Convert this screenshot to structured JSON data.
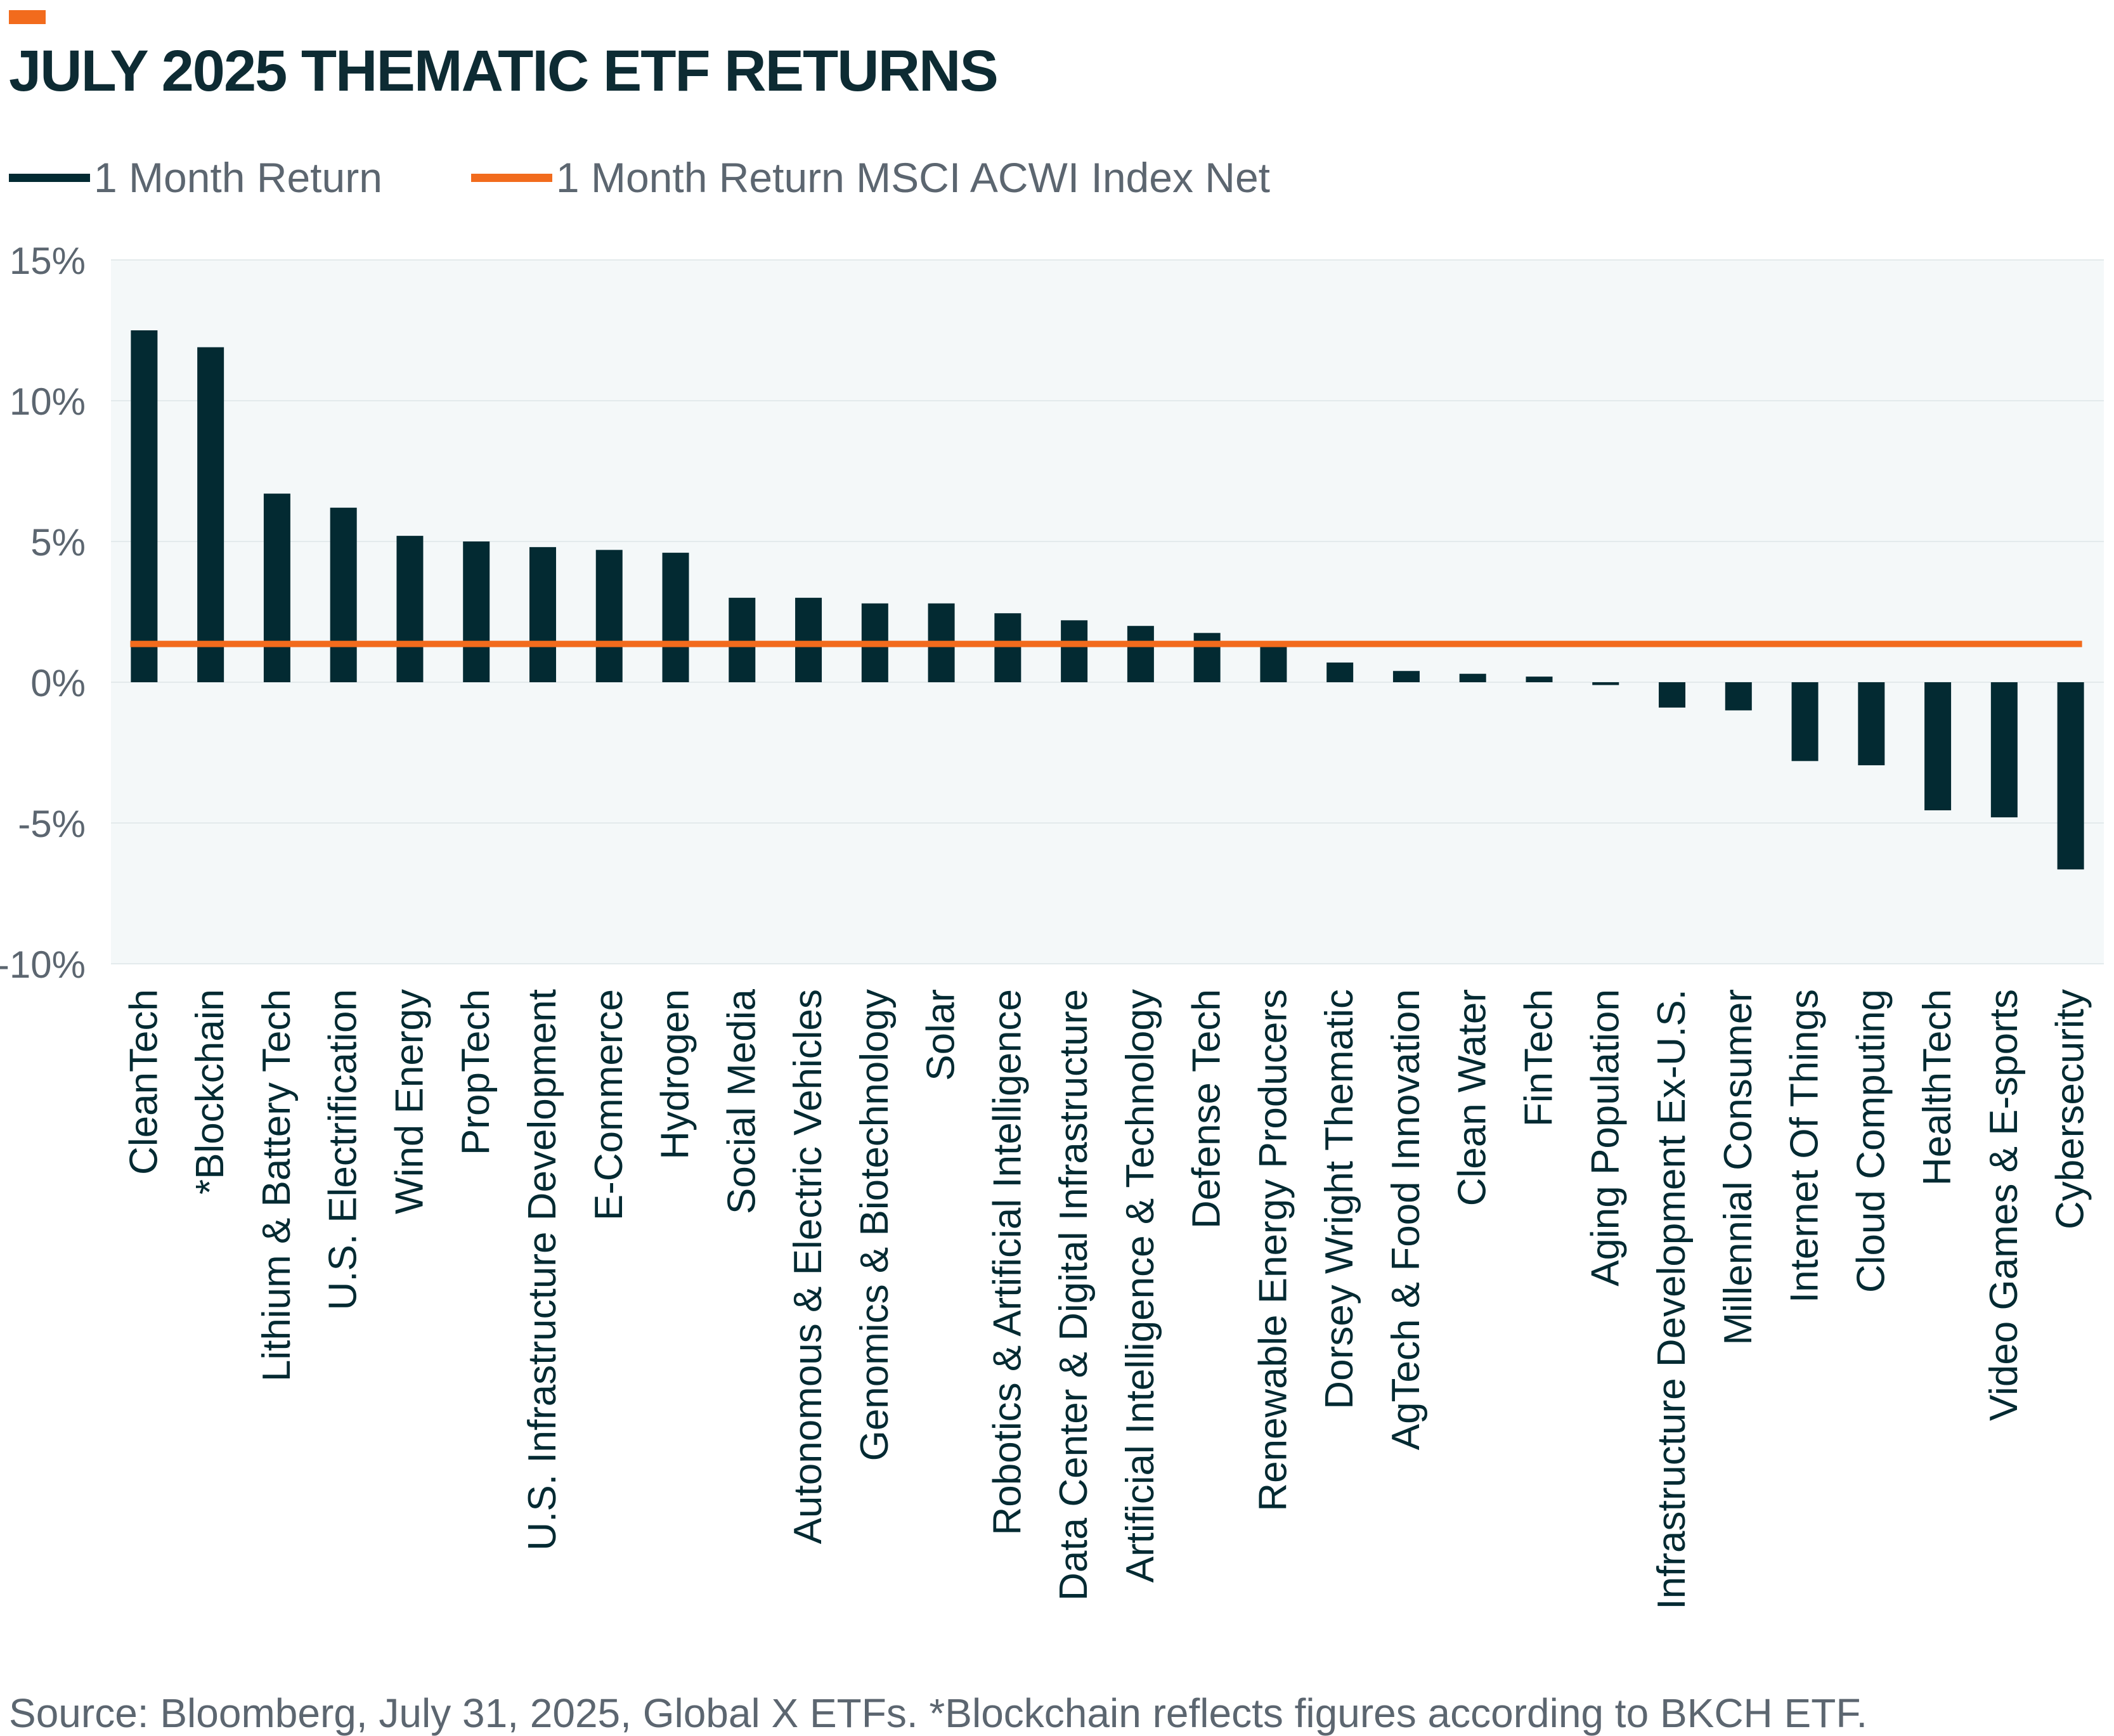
{
  "colors": {
    "accent": "#f26b1d",
    "title": "#0d2b33",
    "bar": "#032a32",
    "index_line": "#f26b1d",
    "plot_background": "#f4f8f9",
    "gridline": "#e3eaec",
    "muted_text": "#5c6670"
  },
  "chart_data": {
    "type": "bar",
    "title": "JULY 2025 THEMATIC ETF RETURNS",
    "xlabel": "",
    "ylabel": "",
    "ylim": [
      -10,
      15
    ],
    "yticks": [
      15,
      10,
      5,
      0,
      -5,
      -10
    ],
    "ytick_labels": [
      "15%",
      "10%",
      "5%",
      "0%",
      "-5%",
      "-10%"
    ],
    "grid": true,
    "legend_position": "top-left",
    "legend": [
      "1 Month Return",
      "1 Month Return MSCI ACWI Index Net"
    ],
    "categories": [
      "CleanTech",
      "*Blockchain",
      "Lithium & Battery Tech",
      "U.S. Electrification",
      "Wind Energy",
      "PropTech",
      "U.S. Infrastructure Development",
      "E-Commerce",
      "Hydrogen",
      "Social Media",
      "Autonomous & Electric Vehicles",
      "Genomics & Biotechnology",
      "Solar",
      "Robotics & Artificial Intelligence",
      "Data Center & Digital Infrastructure",
      "Artificial Intelligence & Technology",
      "Defense Tech",
      "Renewable Energy Producers",
      "Dorsey Wright Thematic",
      "AgTech & Food Innovation",
      "Clean Water",
      "FinTech",
      "Aging Population",
      "Infrastructure Development Ex-U.S.",
      "Millennial Consumer",
      "Internet Of Things",
      "Cloud Computing",
      "HealthTech",
      "Video Games & E-sports",
      "Cybersecurity"
    ],
    "series": [
      {
        "name": "1 Month Return",
        "type": "bar",
        "values": [
          12.5,
          11.9,
          6.7,
          6.2,
          5.2,
          5.0,
          4.8,
          4.7,
          4.6,
          3.0,
          3.0,
          2.8,
          2.8,
          2.45,
          2.2,
          2.0,
          1.75,
          1.3,
          0.7,
          0.4,
          0.3,
          0.2,
          -0.1,
          -0.9,
          -1.0,
          -2.8,
          -2.95,
          -4.55,
          -4.8,
          -6.65
        ]
      },
      {
        "name": "1 Month Return MSCI ACWI Index Net",
        "type": "line",
        "value": 1.36
      }
    ]
  },
  "source_note": "Source: Bloomberg, July 31, 2025, Global X ETFs. *Blockchain reflects figures according to BKCH ETF."
}
